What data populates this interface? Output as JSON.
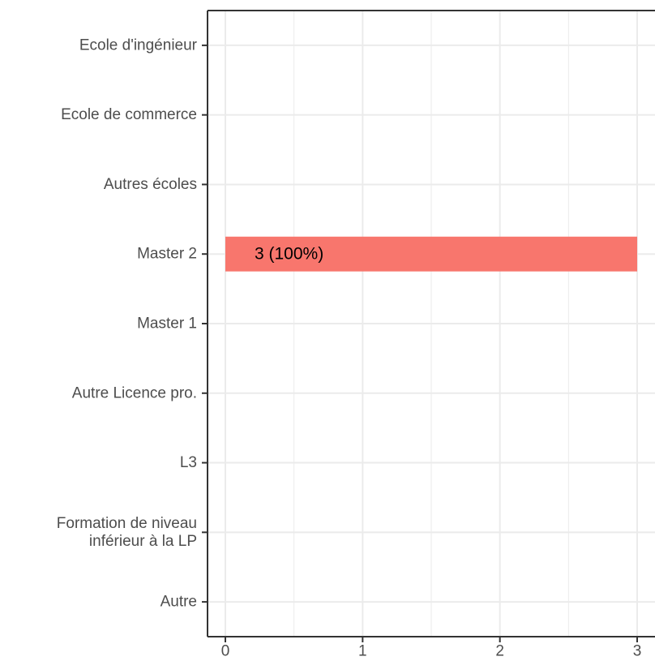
{
  "chart_data": {
    "type": "bar",
    "orientation": "horizontal",
    "title": "",
    "xlabel": "",
    "ylabel": "",
    "categories": [
      [
        "Ecole d'ingénieur"
      ],
      [
        "Ecole de commerce"
      ],
      [
        "Autres écoles"
      ],
      [
        "Master 2"
      ],
      [
        "Master 1"
      ],
      [
        "Autre Licence pro."
      ],
      [
        "L3"
      ],
      [
        "Formation de niveau",
        "inférieur à la LP"
      ],
      [
        "Autre"
      ]
    ],
    "values": [
      0,
      0,
      0,
      3,
      0,
      0,
      0,
      0,
      0
    ],
    "data_labels": [
      "",
      "",
      "",
      "3 (100%)",
      "",
      "",
      "",
      "",
      ""
    ],
    "xlim": [
      -0.13,
      3.13
    ],
    "xticks": [
      0,
      1,
      2,
      3
    ],
    "xtick_labels": [
      "0",
      "1",
      "2",
      "3"
    ],
    "grid": true,
    "bar_color": "#F8766D",
    "grid_color": "#ebebeb",
    "axis_color": "#333333"
  }
}
